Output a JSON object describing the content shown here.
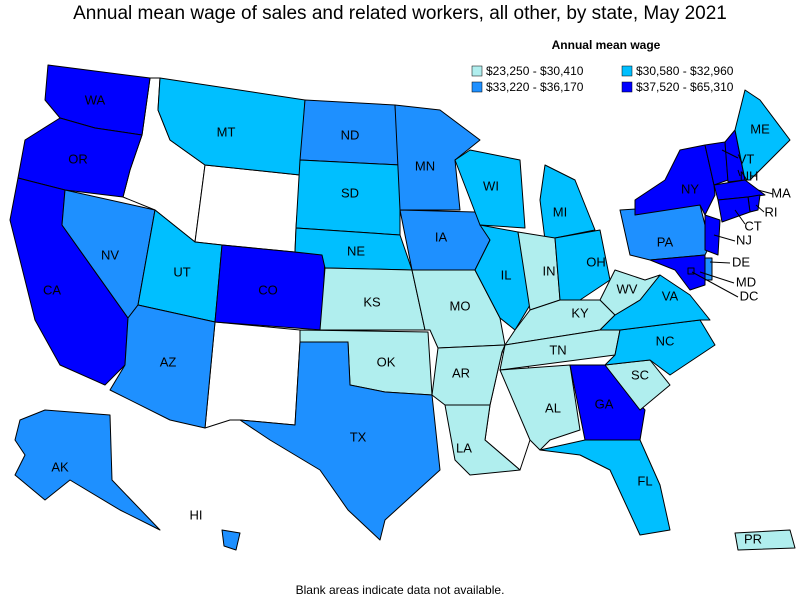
{
  "title": "Annual mean wage of sales and related workers, all other, by state, May 2021",
  "legend": {
    "title": "Annual mean wage",
    "items": [
      {
        "label": "$23,250 - $30,410",
        "color": "#b0eeee"
      },
      {
        "label": "$30,580 - $32,960",
        "color": "#00bfff"
      },
      {
        "label": "$33,220 - $36,170",
        "color": "#1e90ff"
      },
      {
        "label": "$37,520 - $65,310",
        "color": "#0000ff"
      }
    ]
  },
  "states": [
    {
      "label": "WA",
      "color": "#0000ff"
    },
    {
      "label": "OR",
      "color": "#0000ff"
    },
    {
      "label": "CA",
      "color": "#0000ff"
    },
    {
      "label": "NV",
      "color": "#1e90ff"
    },
    {
      "label": "MT",
      "color": "#00bfff"
    },
    {
      "label": "UT",
      "color": "#00bfff"
    },
    {
      "label": "CO",
      "color": "#0000ff"
    },
    {
      "label": "AZ",
      "color": "#1e90ff"
    },
    {
      "label": "ND",
      "color": "#1e90ff"
    },
    {
      "label": "SD",
      "color": "#00bfff"
    },
    {
      "label": "NE",
      "color": "#00bfff"
    },
    {
      "label": "KS",
      "color": "#b0eeee"
    },
    {
      "label": "OK",
      "color": "#b0eeee"
    },
    {
      "label": "TX",
      "color": "#1e90ff"
    },
    {
      "label": "MN",
      "color": "#1e90ff"
    },
    {
      "label": "IA",
      "color": "#1e90ff"
    },
    {
      "label": "MO",
      "color": "#b0eeee"
    },
    {
      "label": "AR",
      "color": "#b0eeee"
    },
    {
      "label": "LA",
      "color": "#b0eeee"
    },
    {
      "label": "WI",
      "color": "#00bfff"
    },
    {
      "label": "IL",
      "color": "#00bfff"
    },
    {
      "label": "MI",
      "color": "#00bfff"
    },
    {
      "label": "IN",
      "color": "#b0eeee"
    },
    {
      "label": "OH",
      "color": "#00bfff"
    },
    {
      "label": "KY",
      "color": "#b0eeee"
    },
    {
      "label": "TN",
      "color": "#b0eeee"
    },
    {
      "label": "AL",
      "color": "#b0eeee"
    },
    {
      "label": "GA",
      "color": "#0000ff"
    },
    {
      "label": "FL",
      "color": "#00bfff"
    },
    {
      "label": "SC",
      "color": "#b0eeee"
    },
    {
      "label": "NC",
      "color": "#00bfff"
    },
    {
      "label": "VA",
      "color": "#00bfff"
    },
    {
      "label": "WV",
      "color": "#b0eeee"
    },
    {
      "label": "PA",
      "color": "#1e90ff"
    },
    {
      "label": "NY",
      "color": "#0000ff"
    },
    {
      "label": "VT",
      "color": "#0000ff"
    },
    {
      "label": "NH",
      "color": "#0000ff"
    },
    {
      "label": "ME",
      "color": "#00bfff"
    },
    {
      "label": "MA",
      "color": "#0000ff"
    },
    {
      "label": "RI",
      "color": "#0000ff"
    },
    {
      "label": "CT",
      "color": "#0000ff"
    },
    {
      "label": "NJ",
      "color": "#0000ff"
    },
    {
      "label": "DE",
      "color": "#1e90ff"
    },
    {
      "label": "MD",
      "color": "#0000ff"
    },
    {
      "label": "DC",
      "color": "#0000ff"
    },
    {
      "label": "AK",
      "color": "#1e90ff"
    },
    {
      "label": "HI",
      "color": "#1e90ff"
    },
    {
      "label": "PR",
      "color": "#b0eeee"
    }
  ],
  "note": "Blank areas indicate data not available."
}
